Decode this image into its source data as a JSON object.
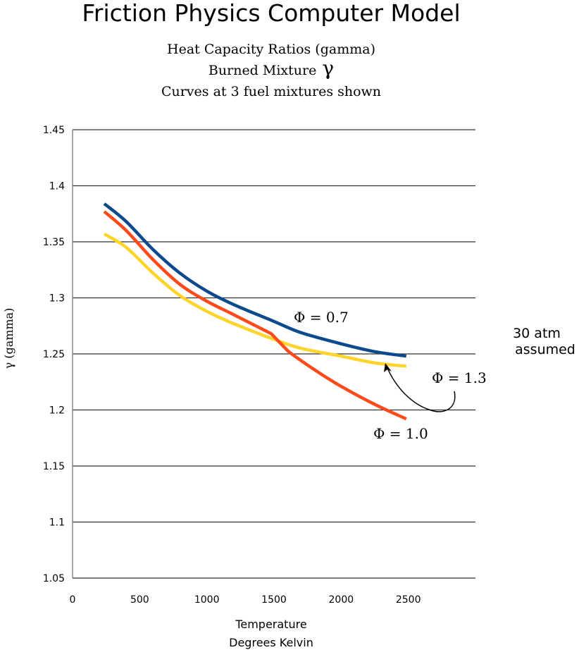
{
  "chart_data": {
    "type": "line",
    "title": "Friction Physics Computer Model",
    "subtitle": [
      "Heat Capacity Ratios (gamma)",
      "Burned Mixture",
      "Curves at 3 fuel mixtures shown"
    ],
    "subtitle_symbol": "γ",
    "xlabel": [
      "Temperature",
      "Degrees Kelvin"
    ],
    "ylabel": "γ (gamma)",
    "xlim": [
      0,
      3000
    ],
    "ylim": [
      1.05,
      1.45
    ],
    "xticks": [
      0,
      500,
      1000,
      1500,
      2000,
      2500
    ],
    "yticks": [
      1.05,
      1.1,
      1.15,
      1.2,
      1.25,
      1.3,
      1.35,
      1.4,
      1.45
    ],
    "xtick_labels": [
      "0",
      "500",
      "1000",
      "1500",
      "2000",
      "2500"
    ],
    "ytick_labels": [
      "1.05",
      "1.1",
      "1.15",
      "1.2",
      "1.25",
      "1.3",
      "1.35",
      "1.4",
      "1.45"
    ],
    "grid": true,
    "series": [
      {
        "name": "Φ = 0.7",
        "color": "#0b4a8c",
        "x": [
          236,
          400,
          600,
          800,
          1000,
          1200,
          1500,
          1700,
          2000,
          2250,
          2485
        ],
        "y": [
          1.384,
          1.368,
          1.343,
          1.322,
          1.306,
          1.294,
          1.279,
          1.269,
          1.259,
          1.252,
          1.248
        ]
      },
      {
        "name": "Φ = 1.0",
        "color": "#ff4a1c",
        "x": [
          236,
          400,
          600,
          800,
          1000,
          1200,
          1480,
          1600,
          1800,
          2000,
          2250,
          2485
        ],
        "y": [
          1.377,
          1.36,
          1.334,
          1.312,
          1.297,
          1.285,
          1.268,
          1.253,
          1.236,
          1.221,
          1.205,
          1.192
        ]
      },
      {
        "name": "Φ = 1.3",
        "color": "#ffd42a",
        "x": [
          236,
          400,
          600,
          800,
          1000,
          1200,
          1500,
          1700,
          2000,
          2250,
          2485
        ],
        "y": [
          1.357,
          1.345,
          1.322,
          1.302,
          1.288,
          1.277,
          1.263,
          1.255,
          1.248,
          1.242,
          1.239
        ]
      }
    ],
    "annotations": {
      "phi07": "Φ = 0.7",
      "phi10": "Φ = 1.0",
      "phi13": "Φ = 1.3",
      "side_note": [
        "30 atm",
        "assumed"
      ]
    }
  }
}
